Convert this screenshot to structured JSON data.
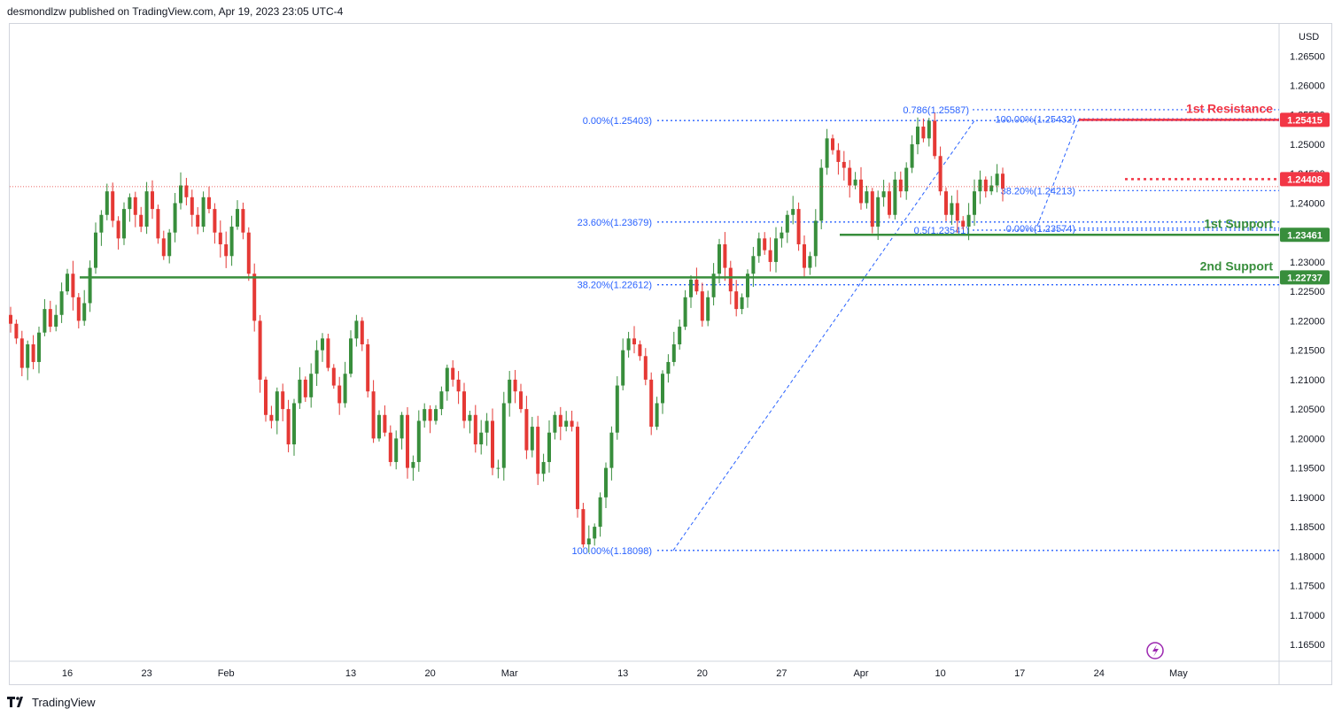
{
  "header": {
    "text": "desmondlzw published on TradingView.com, Apr 19, 2023 23:05 UTC-4"
  },
  "footer": {
    "brand": "TradingView"
  },
  "colors": {
    "up": "#22ab94",
    "up_body": "#388e3c",
    "down": "#e53935",
    "fib": "#2962ff",
    "resistance": "#f23645",
    "support": "#388e3c"
  },
  "chart_data": {
    "type": "candlestick",
    "currency_label": "USD",
    "y_ticks": [
      "1.26500",
      "1.26000",
      "1.25500",
      "1.25000",
      "1.24500",
      "1.24000",
      "1.23500",
      "1.23000",
      "1.22500",
      "1.22000",
      "1.21500",
      "1.21000",
      "1.20500",
      "1.20000",
      "1.19500",
      "1.19000",
      "1.18500",
      "1.18000",
      "1.17500",
      "1.17000",
      "1.16500"
    ],
    "ylim": [
      1.1632,
      1.2685
    ],
    "x_ticks": [
      {
        "label": "16",
        "bar": 10
      },
      {
        "label": "23",
        "bar": 24
      },
      {
        "label": "Feb",
        "bar": 38
      },
      {
        "label": "13",
        "bar": 60
      },
      {
        "label": "20",
        "bar": 74
      },
      {
        "label": "Mar",
        "bar": 88
      },
      {
        "label": "13",
        "bar": 108
      },
      {
        "label": "20",
        "bar": 122
      },
      {
        "label": "27",
        "bar": 136
      },
      {
        "label": "Apr",
        "bar": 150
      },
      {
        "label": "10",
        "bar": 164
      },
      {
        "label": "17",
        "bar": 178
      },
      {
        "label": "24",
        "bar": 192
      },
      {
        "label": "May",
        "bar": 206
      }
    ],
    "closes": [
      1.2195,
      1.217,
      1.212,
      1.216,
      1.213,
      1.218,
      1.222,
      1.219,
      1.221,
      1.225,
      1.228,
      1.224,
      1.22,
      1.223,
      1.229,
      1.235,
      1.238,
      1.242,
      1.237,
      1.234,
      1.239,
      1.241,
      1.238,
      1.236,
      1.242,
      1.239,
      1.234,
      1.231,
      1.235,
      1.24,
      1.243,
      1.241,
      1.238,
      1.236,
      1.241,
      1.239,
      1.235,
      1.233,
      1.231,
      1.236,
      1.239,
      1.235,
      1.228,
      1.22,
      1.21,
      1.204,
      1.203,
      1.208,
      1.205,
      1.199,
      1.206,
      1.21,
      1.207,
      1.211,
      1.215,
      1.217,
      1.212,
      1.209,
      1.206,
      1.211,
      1.217,
      1.22,
      1.216,
      1.208,
      1.2,
      1.204,
      1.201,
      1.196,
      1.2,
      1.204,
      1.195,
      1.196,
      1.203,
      1.205,
      1.203,
      1.205,
      1.208,
      1.212,
      1.21,
      1.208,
      1.203,
      1.204,
      1.199,
      1.201,
      1.203,
      1.195,
      1.195,
      1.206,
      1.21,
      1.208,
      1.205,
      1.198,
      1.202,
      1.194,
      1.196,
      1.201,
      1.204,
      1.202,
      1.203,
      1.202,
      1.188,
      1.182,
      1.183,
      1.185,
      1.19,
      1.195,
      1.201,
      1.209,
      1.215,
      1.217,
      1.216,
      1.214,
      1.21,
      1.202,
      1.206,
      1.211,
      1.213,
      1.216,
      1.219,
      1.224,
      1.227,
      1.225,
      1.22,
      1.224,
      1.228,
      1.233,
      1.229,
      1.225,
      1.222,
      1.224,
      1.228,
      1.231,
      1.234,
      1.232,
      1.23,
      1.234,
      1.235,
      1.238,
      1.239,
      1.233,
      1.229,
      1.231,
      1.237,
      1.246,
      1.251,
      1.249,
      1.247,
      1.246,
      1.243,
      1.244,
      1.24,
      1.242,
      1.236,
      1.241,
      1.242,
      1.238,
      1.244,
      1.242,
      1.246,
      1.25,
      1.253,
      1.251,
      1.254,
      1.248,
      1.242,
      1.238,
      1.24,
      1.237,
      1.236,
      1.238,
      1.242,
      1.244,
      1.242,
      1.243,
      1.245,
      1.2425
    ],
    "horizontal_levels": [
      {
        "name": "1st Resistance",
        "value": 1.25415,
        "label": "1.25415",
        "kind": "resistance"
      },
      {
        "name": "1st Support",
        "value": 1.23461,
        "label": "1.23461",
        "kind": "support"
      },
      {
        "name": "2nd Support",
        "value": 1.22737,
        "label": "1.22737",
        "kind": "support"
      }
    ],
    "current_price": {
      "value": 1.24408,
      "label": "1.24408"
    },
    "fib_labels": [
      {
        "text": "0.00%(1.25403)",
        "value": 1.25403
      },
      {
        "text": "23.60%(1.23679)",
        "value": 1.23679
      },
      {
        "text": "38.20%(1.22612)",
        "value": 1.22612
      },
      {
        "text": "100.00%(1.18098)",
        "value": 1.18098
      },
      {
        "text": "0.786(1.25587)",
        "value": 1.25587
      },
      {
        "text": "100.00%(1.25432)",
        "value": 1.25432
      },
      {
        "text": "0.00%(1.23574)",
        "value": 1.23574
      },
      {
        "text": "38.20%(1.24213)",
        "value": 1.24213
      },
      {
        "text": "0.5(1.23541)",
        "value": 1.23541
      }
    ]
  }
}
